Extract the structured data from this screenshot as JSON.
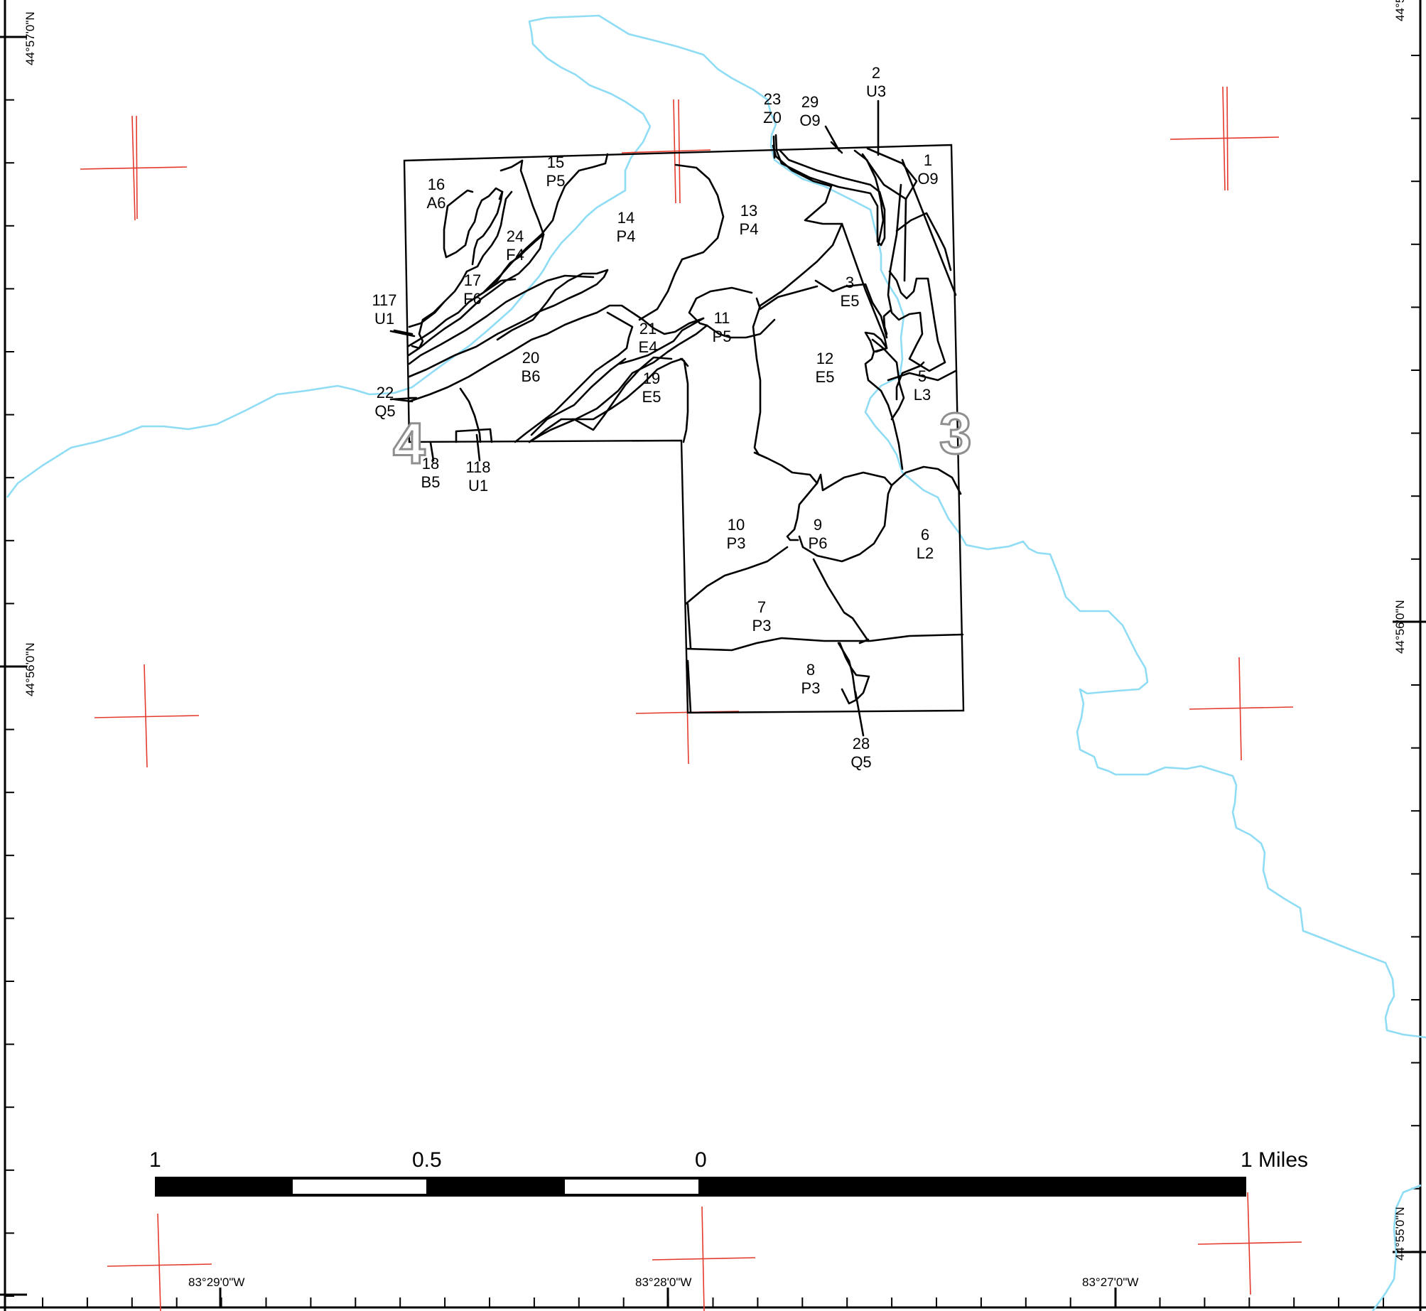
{
  "map": {
    "soil_units": [
      {
        "id": "1",
        "code": "O9"
      },
      {
        "id": "2",
        "code": "U3"
      },
      {
        "id": "3",
        "code": "E5"
      },
      {
        "id": "5",
        "code": "L3"
      },
      {
        "id": "6",
        "code": "L2"
      },
      {
        "id": "7",
        "code": "P3"
      },
      {
        "id": "8",
        "code": "P3"
      },
      {
        "id": "9",
        "code": "P6"
      },
      {
        "id": "10",
        "code": "P3"
      },
      {
        "id": "11",
        "code": "P5"
      },
      {
        "id": "12",
        "code": "E5"
      },
      {
        "id": "13",
        "code": "P4"
      },
      {
        "id": "14",
        "code": "P4"
      },
      {
        "id": "15",
        "code": "P5"
      },
      {
        "id": "16",
        "code": "A6"
      },
      {
        "id": "17",
        "code": "F6"
      },
      {
        "id": "18",
        "code": "B5"
      },
      {
        "id": "19",
        "code": "E5"
      },
      {
        "id": "20",
        "code": "B6"
      },
      {
        "id": "21",
        "code": "E4"
      },
      {
        "id": "22",
        "code": "Q5"
      },
      {
        "id": "23",
        "code": "Z0"
      },
      {
        "id": "24",
        "code": "F4"
      },
      {
        "id": "28",
        "code": "Q5"
      },
      {
        "id": "29",
        "code": "O9"
      },
      {
        "id": "117",
        "code": "U1"
      },
      {
        "id": "118",
        "code": "U1"
      }
    ],
    "section_numbers": [
      "4",
      "3"
    ],
    "lat_labels": [
      "44°57'0\"N",
      "44°56'0\"N",
      "44°56'0\"N",
      "44°55'0\"N",
      "44°5"
    ],
    "lon_labels": [
      "83°29'0\"W",
      "83°28'0\"W",
      "83°27'0\"W"
    ],
    "scale_bar": {
      "labels": [
        "1",
        "0.5",
        "0",
        "1 Miles"
      ]
    },
    "colors": {
      "boundary": "#000000",
      "river": "#8fdcf5",
      "grid_cross": "#e43a2d",
      "section_outline": "#8f8f8f"
    }
  }
}
